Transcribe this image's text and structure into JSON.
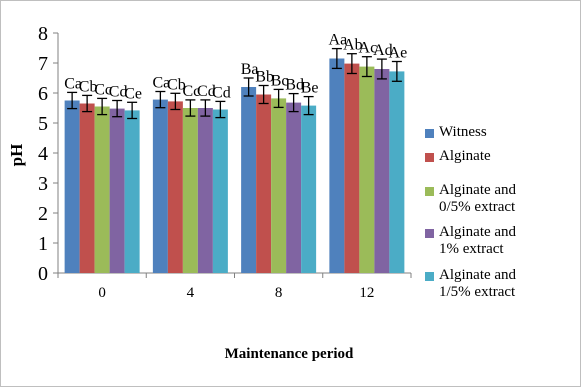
{
  "chart_data": {
    "type": "bar",
    "title": "",
    "xlabel": "Maintenance period",
    "ylabel": "pH",
    "ylim": [
      0,
      8
    ],
    "yticks": [
      0,
      1,
      2,
      3,
      4,
      5,
      6,
      7,
      8
    ],
    "categories": [
      "0",
      "4",
      "8",
      "12"
    ],
    "legend_position": "right",
    "grid": false,
    "series": [
      {
        "name": "Witness",
        "color": "#4F81BD",
        "values": [
          5.75,
          5.78,
          6.2,
          7.15
        ],
        "errors": [
          0.27,
          0.27,
          0.3,
          0.33
        ],
        "labels": [
          "Ca",
          "Ca",
          "Ba",
          "Aa"
        ]
      },
      {
        "name": "Alginate",
        "color": "#C0504D",
        "values": [
          5.65,
          5.72,
          5.95,
          6.98
        ],
        "errors": [
          0.27,
          0.27,
          0.3,
          0.33
        ],
        "labels": [
          "Cb",
          "Cb",
          "Bb",
          "Ab"
        ]
      },
      {
        "name": "Alginate and\n0/5% extract",
        "color": "#9BBB59",
        "values": [
          5.55,
          5.5,
          5.82,
          6.88
        ],
        "errors": [
          0.27,
          0.27,
          0.3,
          0.33
        ],
        "labels": [
          "Cc",
          "Cc",
          "Bc",
          "Ac"
        ]
      },
      {
        "name": "Alginate and\n1% extract",
        "color": "#8064A2",
        "values": [
          5.48,
          5.5,
          5.68,
          6.8
        ],
        "errors": [
          0.27,
          0.27,
          0.3,
          0.33
        ],
        "labels": [
          "Cd",
          "Cd",
          "Bd",
          "Ad"
        ]
      },
      {
        "name": "Alginate and\n1/5% extract",
        "color": "#4BACC6",
        "values": [
          5.42,
          5.45,
          5.58,
          6.72
        ],
        "errors": [
          0.27,
          0.27,
          0.3,
          0.33
        ],
        "labels": [
          "Ce",
          "Cd",
          "Be",
          "Ae"
        ]
      }
    ]
  }
}
